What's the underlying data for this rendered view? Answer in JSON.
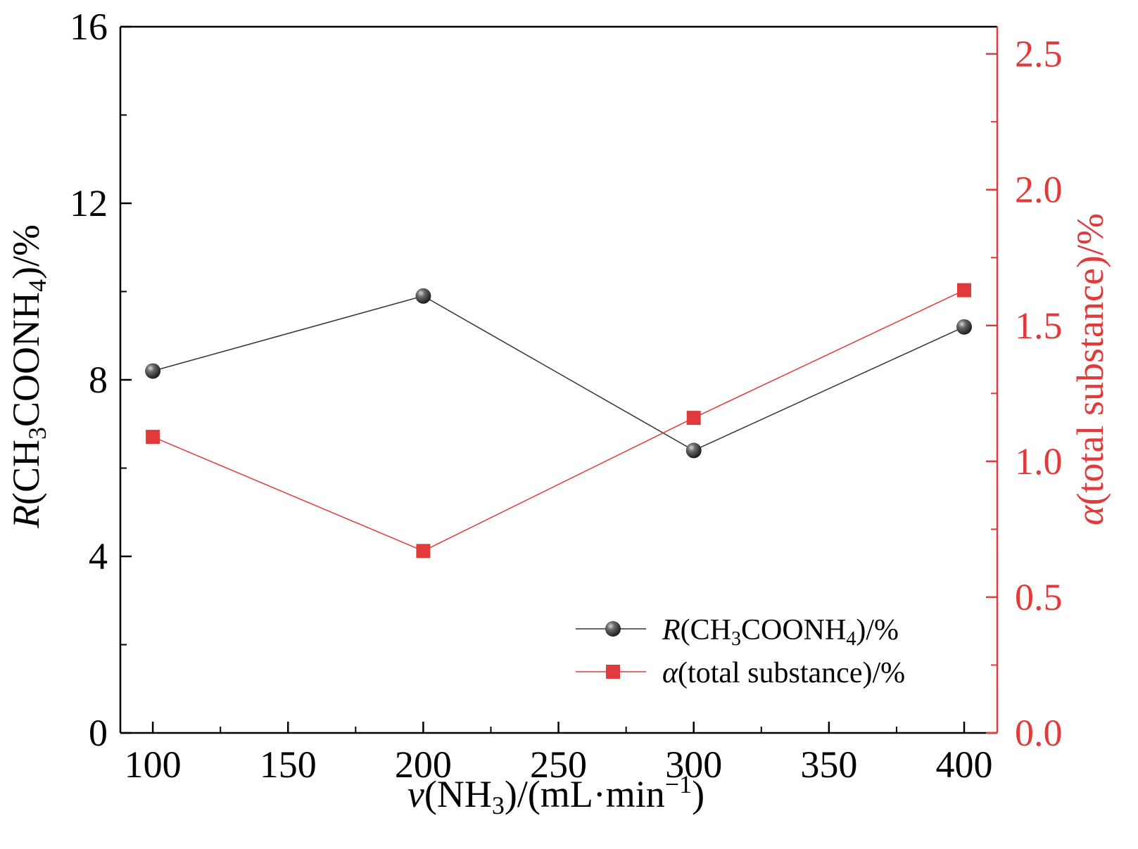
{
  "chart_data": {
    "type": "line",
    "x": [
      100,
      200,
      300,
      400
    ],
    "x_ticks": [
      "100",
      "150",
      "200",
      "250",
      "300",
      "350",
      "400"
    ],
    "x_tick_values": [
      100,
      150,
      200,
      250,
      300,
      350,
      400
    ],
    "xlim": [
      88,
      400
    ],
    "xlabel": {
      "italic": "v",
      "pre": "(NH",
      "sub": "3",
      "mid": ")/(mL·min",
      "sup": "−1",
      "post": ")"
    },
    "y_left": {
      "ylim": [
        0,
        16
      ],
      "ticks": [
        "0",
        "4",
        "8",
        "12",
        "16"
      ],
      "tick_values": [
        0,
        4,
        8,
        12,
        16
      ],
      "label": {
        "italic": "R",
        "pre": "(CH",
        "sub1": "3",
        "mid": "COONH",
        "sub2": "4",
        "post": ")/%"
      }
    },
    "y_right": {
      "ylim": [
        0,
        2.6
      ],
      "ticks": [
        "0.0",
        "0.5",
        "1.0",
        "1.5",
        "2.0",
        "2.5"
      ],
      "tick_values": [
        0.0,
        0.5,
        1.0,
        1.5,
        2.0,
        2.5
      ],
      "label": {
        "italic": "α",
        "post": "(total substance)/%"
      }
    },
    "series": [
      {
        "name": "R(CH3COONH4)/%",
        "axis": "left",
        "marker": "circle",
        "values": [
          8.2,
          9.9,
          6.4,
          9.2
        ]
      },
      {
        "name": "α(total substance)/%",
        "axis": "right",
        "marker": "square",
        "values": [
          1.09,
          0.67,
          1.16,
          1.63
        ]
      }
    ],
    "legend": {
      "placement": "bottom-right",
      "entries": [
        {
          "italic": "R",
          "pre": "(CH",
          "sub1": "3",
          "mid": "COONH",
          "sub2": "4",
          "post": ")/%"
        },
        {
          "italic": "α",
          "pre": "(total substance)/%",
          "sub1": "",
          "mid": "",
          "sub2": "",
          "post": ""
        }
      ]
    },
    "colors": {
      "left_series": "#333333",
      "right_series": "#e03a3a",
      "right_axis": "#e03a3a",
      "axis": "#000000"
    }
  }
}
